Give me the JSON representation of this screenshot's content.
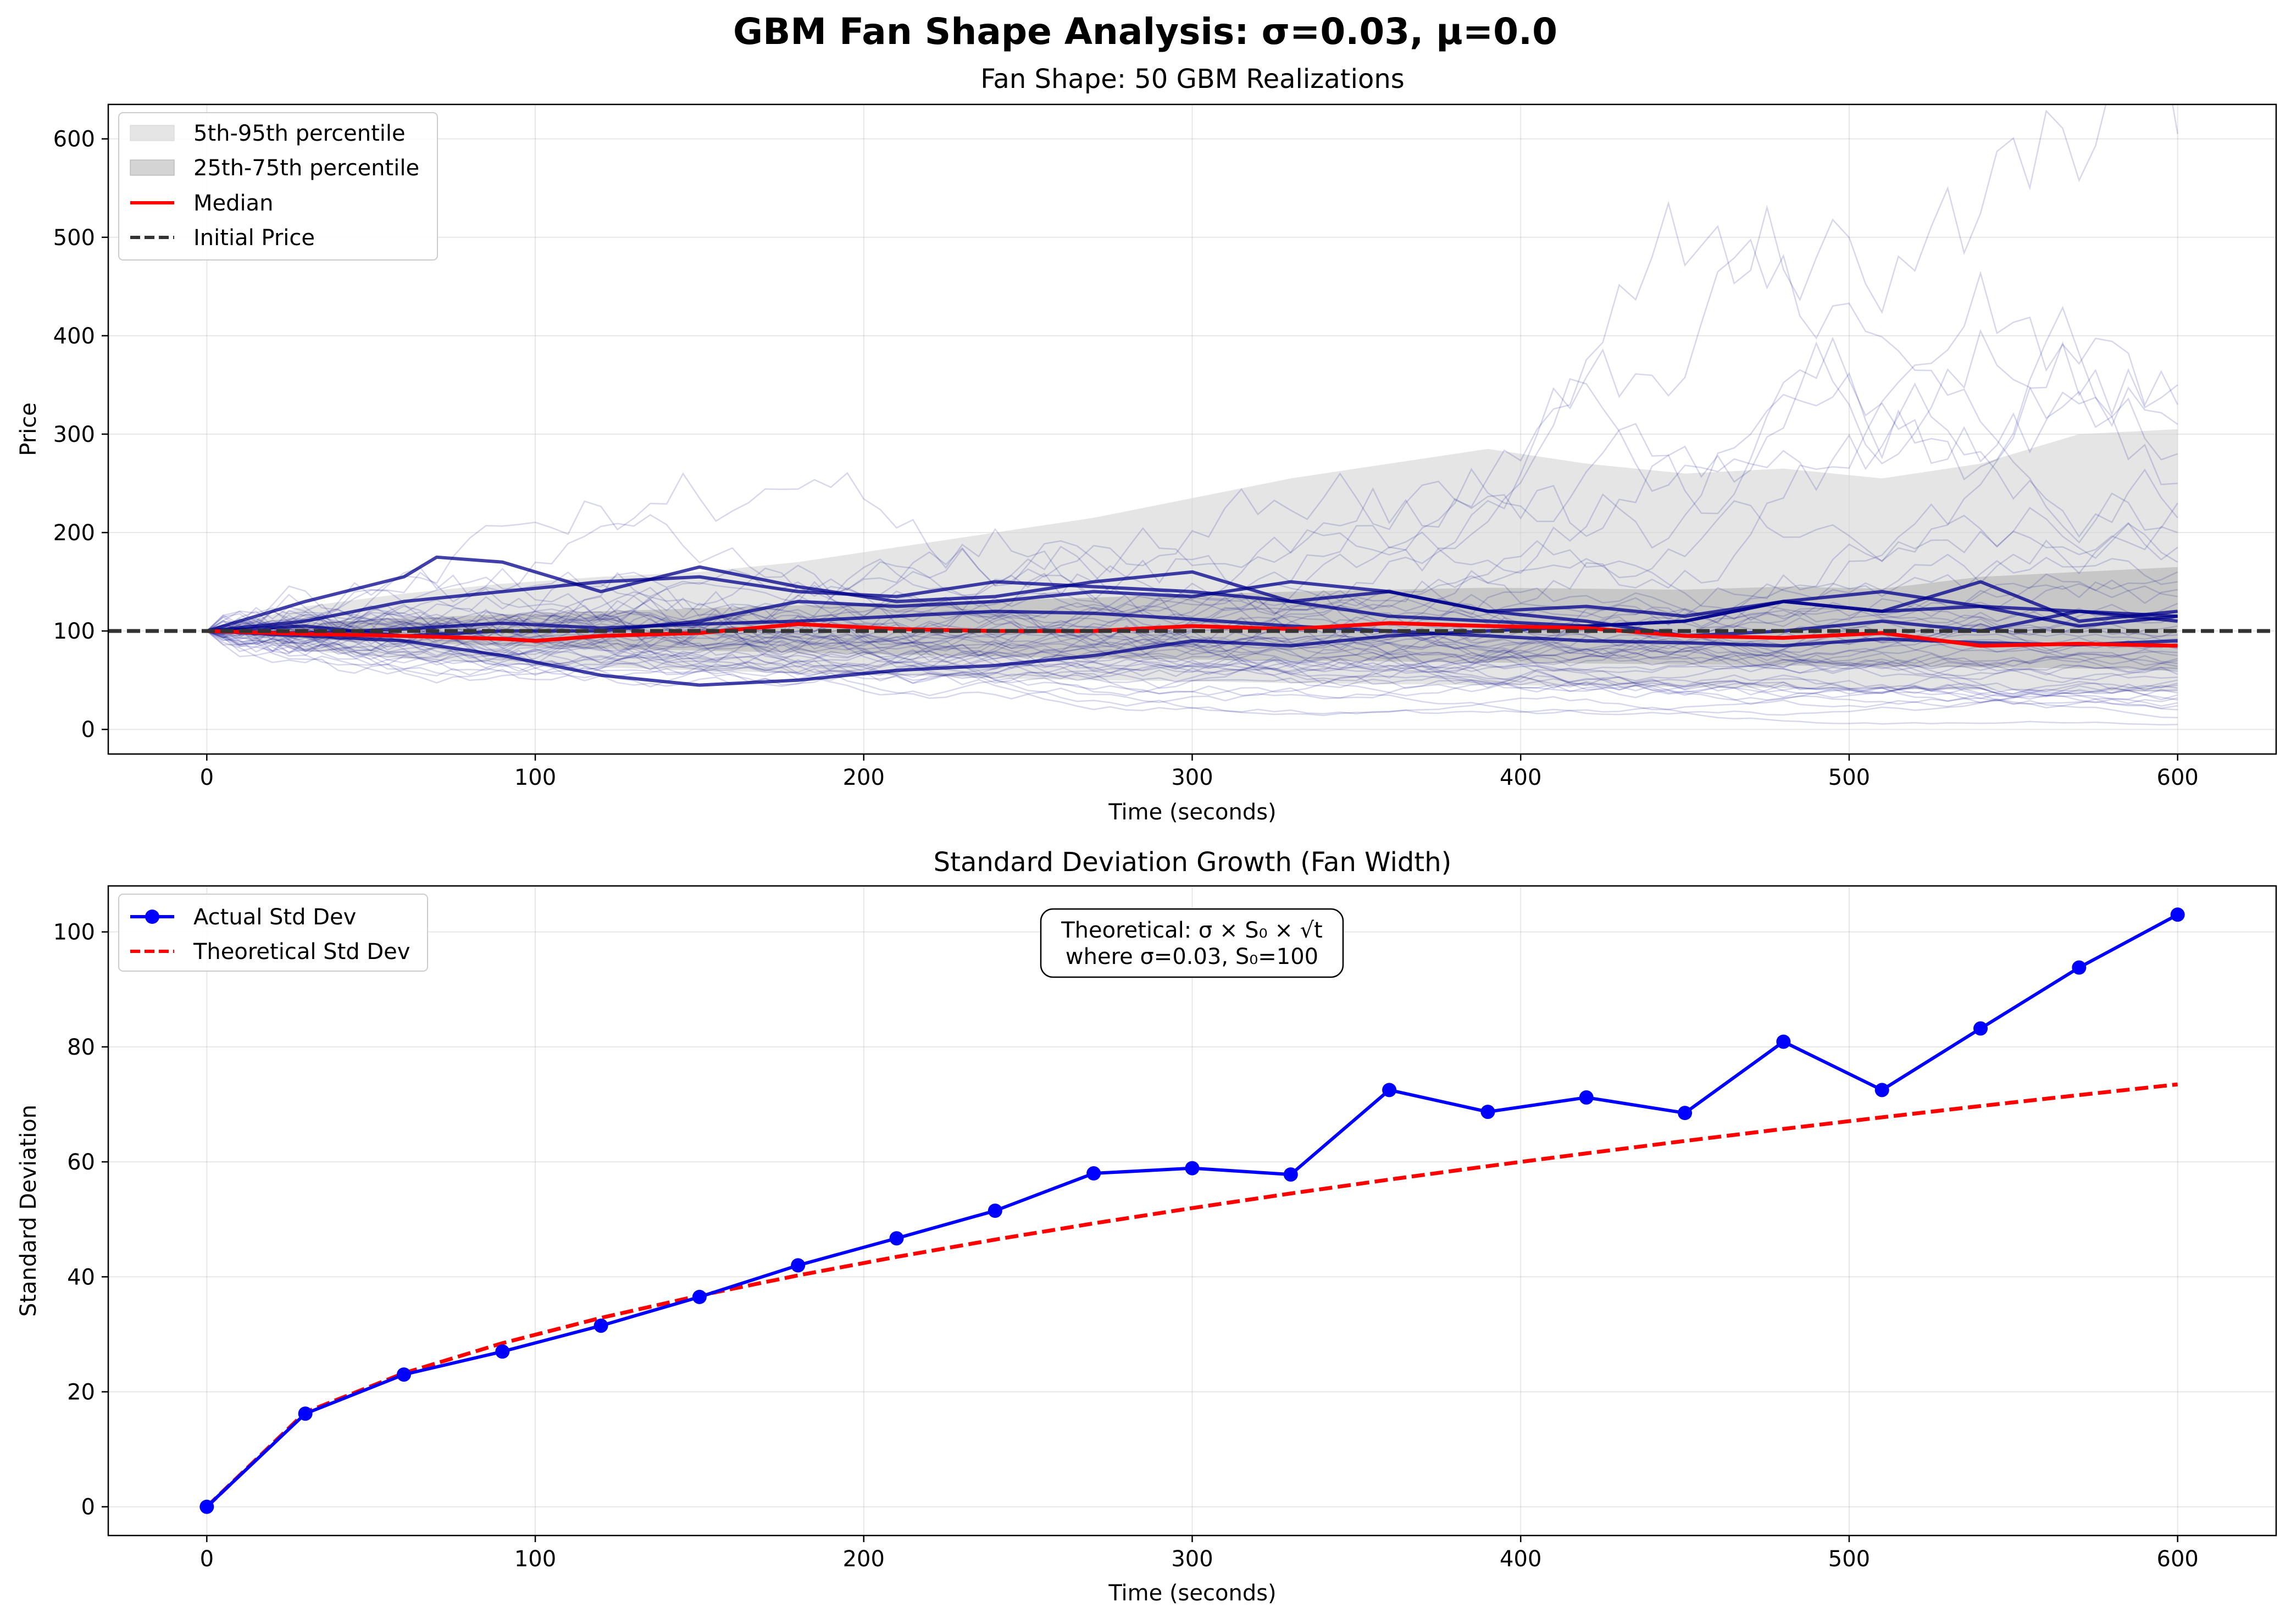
{
  "figure": {
    "suptitle": "GBM Fan Shape Analysis: σ=0.03, μ=0.0"
  },
  "chart_data": [
    {
      "type": "line",
      "title": "Fan Shape: 50 GBM Realizations",
      "xlabel": "Time (seconds)",
      "ylabel": "Price",
      "xlim": [
        -30,
        630
      ],
      "ylim": [
        -25,
        635
      ],
      "xticks": [
        0,
        100,
        200,
        300,
        400,
        500,
        600
      ],
      "yticks": [
        0,
        100,
        200,
        300,
        400,
        500,
        600
      ],
      "grid": true,
      "legend_position": "upper-left",
      "legend": [
        "5th-95th percentile",
        "25th-75th percentile",
        "Median",
        "Initial Price"
      ],
      "colors": {
        "paths": "#00008b",
        "band_5_95": "#d3d3d3",
        "band_25_75": "#a9a9a9",
        "median": "#ff0000",
        "initial_price": "#333333"
      },
      "initial_price": 100,
      "num_realizations": 50,
      "band_5_95": {
        "x": [
          0,
          30,
          60,
          90,
          120,
          150,
          180,
          210,
          240,
          270,
          300,
          330,
          360,
          390,
          420,
          450,
          480,
          510,
          540,
          570,
          600
        ],
        "lower": [
          100,
          80,
          72,
          67,
          63,
          60,
          57,
          55,
          52,
          50,
          49,
          47,
          46,
          45,
          44,
          43,
          42,
          41,
          40,
          39,
          38
        ],
        "upper": [
          100,
          125,
          138,
          148,
          155,
          160,
          170,
          185,
          200,
          215,
          235,
          255,
          270,
          285,
          270,
          260,
          265,
          255,
          270,
          300,
          305
        ]
      },
      "band_25_75": {
        "x": [
          0,
          30,
          60,
          90,
          120,
          150,
          180,
          210,
          240,
          270,
          300,
          330,
          360,
          390,
          420,
          450,
          480,
          510,
          540,
          570,
          600
        ],
        "lower": [
          100,
          92,
          88,
          85,
          82,
          80,
          78,
          76,
          74,
          72,
          71,
          70,
          69,
          68,
          67,
          66,
          65,
          64,
          63,
          62,
          60
        ],
        "upper": [
          100,
          108,
          113,
          117,
          120,
          123,
          126,
          129,
          131,
          134,
          137,
          140,
          142,
          144,
          143,
          142,
          145,
          143,
          155,
          160,
          165
        ]
      },
      "median": {
        "x": [
          0,
          30,
          60,
          90,
          100,
          120,
          150,
          180,
          210,
          240,
          270,
          300,
          330,
          360,
          390,
          420,
          450,
          480,
          510,
          540,
          570,
          600
        ],
        "y": [
          100,
          97,
          95,
          92,
          90,
          95,
          98,
          107,
          102,
          100,
          100,
          105,
          102,
          108,
          105,
          103,
          95,
          93,
          98,
          85,
          87,
          85
        ]
      },
      "highlighted_paths": [
        {
          "x": [
            0,
            30,
            60,
            70,
            90,
            120,
            150,
            180,
            210,
            240,
            270,
            300,
            330,
            360,
            390,
            420,
            450,
            480,
            510,
            540,
            570,
            600
          ],
          "y": [
            100,
            130,
            155,
            175,
            170,
            140,
            165,
            145,
            130,
            135,
            150,
            160,
            130,
            140,
            120,
            125,
            115,
            130,
            120,
            150,
            110,
            120
          ]
        },
        {
          "x": [
            0,
            30,
            60,
            90,
            120,
            150,
            180,
            210,
            240,
            270,
            300,
            330,
            360,
            390,
            420,
            450,
            480,
            510,
            540,
            570,
            600
          ],
          "y": [
            100,
            110,
            130,
            140,
            150,
            155,
            140,
            135,
            150,
            145,
            140,
            130,
            115,
            110,
            105,
            110,
            130,
            120,
            125,
            105,
            115
          ]
        },
        {
          "x": [
            0,
            30,
            60,
            90,
            120,
            150,
            180,
            210,
            240,
            270,
            300,
            330,
            360,
            390,
            420,
            450,
            480,
            510,
            540,
            570,
            600
          ],
          "y": [
            100,
            95,
            90,
            75,
            55,
            45,
            50,
            60,
            65,
            75,
            90,
            85,
            95,
            100,
            105,
            110,
            130,
            140,
            125,
            120,
            115
          ]
        },
        {
          "x": [
            0,
            30,
            60,
            90,
            120,
            150,
            180,
            210,
            240,
            270,
            300,
            330,
            360,
            390,
            420,
            450,
            480,
            510,
            540,
            570,
            600
          ],
          "y": [
            100,
            105,
            95,
            100,
            100,
            110,
            130,
            125,
            130,
            140,
            135,
            150,
            140,
            120,
            110,
            95,
            100,
            110,
            100,
            120,
            110
          ]
        },
        {
          "x": [
            0,
            30,
            60,
            90,
            120,
            150,
            180,
            210,
            240,
            270,
            300,
            330,
            360,
            390,
            420,
            450,
            480,
            510,
            540,
            570,
            600
          ],
          "y": [
            100,
            98,
            102,
            108,
            103,
            107,
            110,
            115,
            120,
            118,
            112,
            105,
            100,
            95,
            90,
            88,
            85,
            92,
            88,
            86,
            90
          ]
        }
      ],
      "background_path_finals": [
        605,
        350,
        330,
        310,
        280,
        250,
        230,
        215,
        200,
        185,
        170,
        160,
        150,
        142,
        135,
        128,
        120,
        115,
        110,
        105,
        100,
        96,
        92,
        88,
        85,
        82,
        78,
        75,
        72,
        70,
        67,
        64,
        62,
        59,
        56,
        53,
        50,
        47,
        45,
        42,
        40,
        37,
        35,
        32,
        30,
        27,
        24,
        20,
        12,
        5
      ]
    },
    {
      "type": "line",
      "title": "Standard Deviation Growth (Fan Width)",
      "xlabel": "Time (seconds)",
      "ylabel": "Standard Deviation",
      "xlim": [
        -30,
        630
      ],
      "ylim": [
        -5,
        108
      ],
      "xticks": [
        0,
        100,
        200,
        300,
        400,
        500,
        600
      ],
      "yticks": [
        0,
        20,
        40,
        60,
        80,
        100
      ],
      "grid": true,
      "legend_position": "upper-left",
      "series": [
        {
          "name": "Actual Std Dev",
          "color": "#0000ff",
          "x": [
            0,
            30,
            60,
            90,
            120,
            150,
            180,
            210,
            240,
            270,
            300,
            330,
            360,
            390,
            420,
            450,
            480,
            510,
            540,
            570,
            600
          ],
          "y": [
            0,
            16.2,
            23.0,
            27.0,
            31.5,
            36.5,
            42.0,
            46.7,
            51.5,
            58.0,
            58.9,
            57.8,
            72.5,
            68.7,
            71.2,
            68.5,
            80.9,
            72.5,
            83.2,
            93.8,
            103.0
          ]
        },
        {
          "name": "Theoretical Std Dev",
          "color": "#ff0000",
          "x": [
            0,
            30,
            60,
            90,
            120,
            150,
            180,
            210,
            240,
            270,
            300,
            330,
            360,
            390,
            420,
            450,
            480,
            510,
            540,
            570,
            600
          ],
          "y": [
            0,
            16.43,
            23.24,
            28.46,
            32.86,
            36.74,
            40.25,
            43.47,
            46.48,
            49.3,
            51.96,
            54.5,
            56.92,
            59.25,
            61.48,
            63.64,
            65.73,
            67.75,
            69.71,
            71.62,
            73.48
          ]
        }
      ],
      "annotation": [
        "Theoretical: σ × S₀ × √t",
        "where σ=0.03, S₀=100"
      ]
    }
  ]
}
